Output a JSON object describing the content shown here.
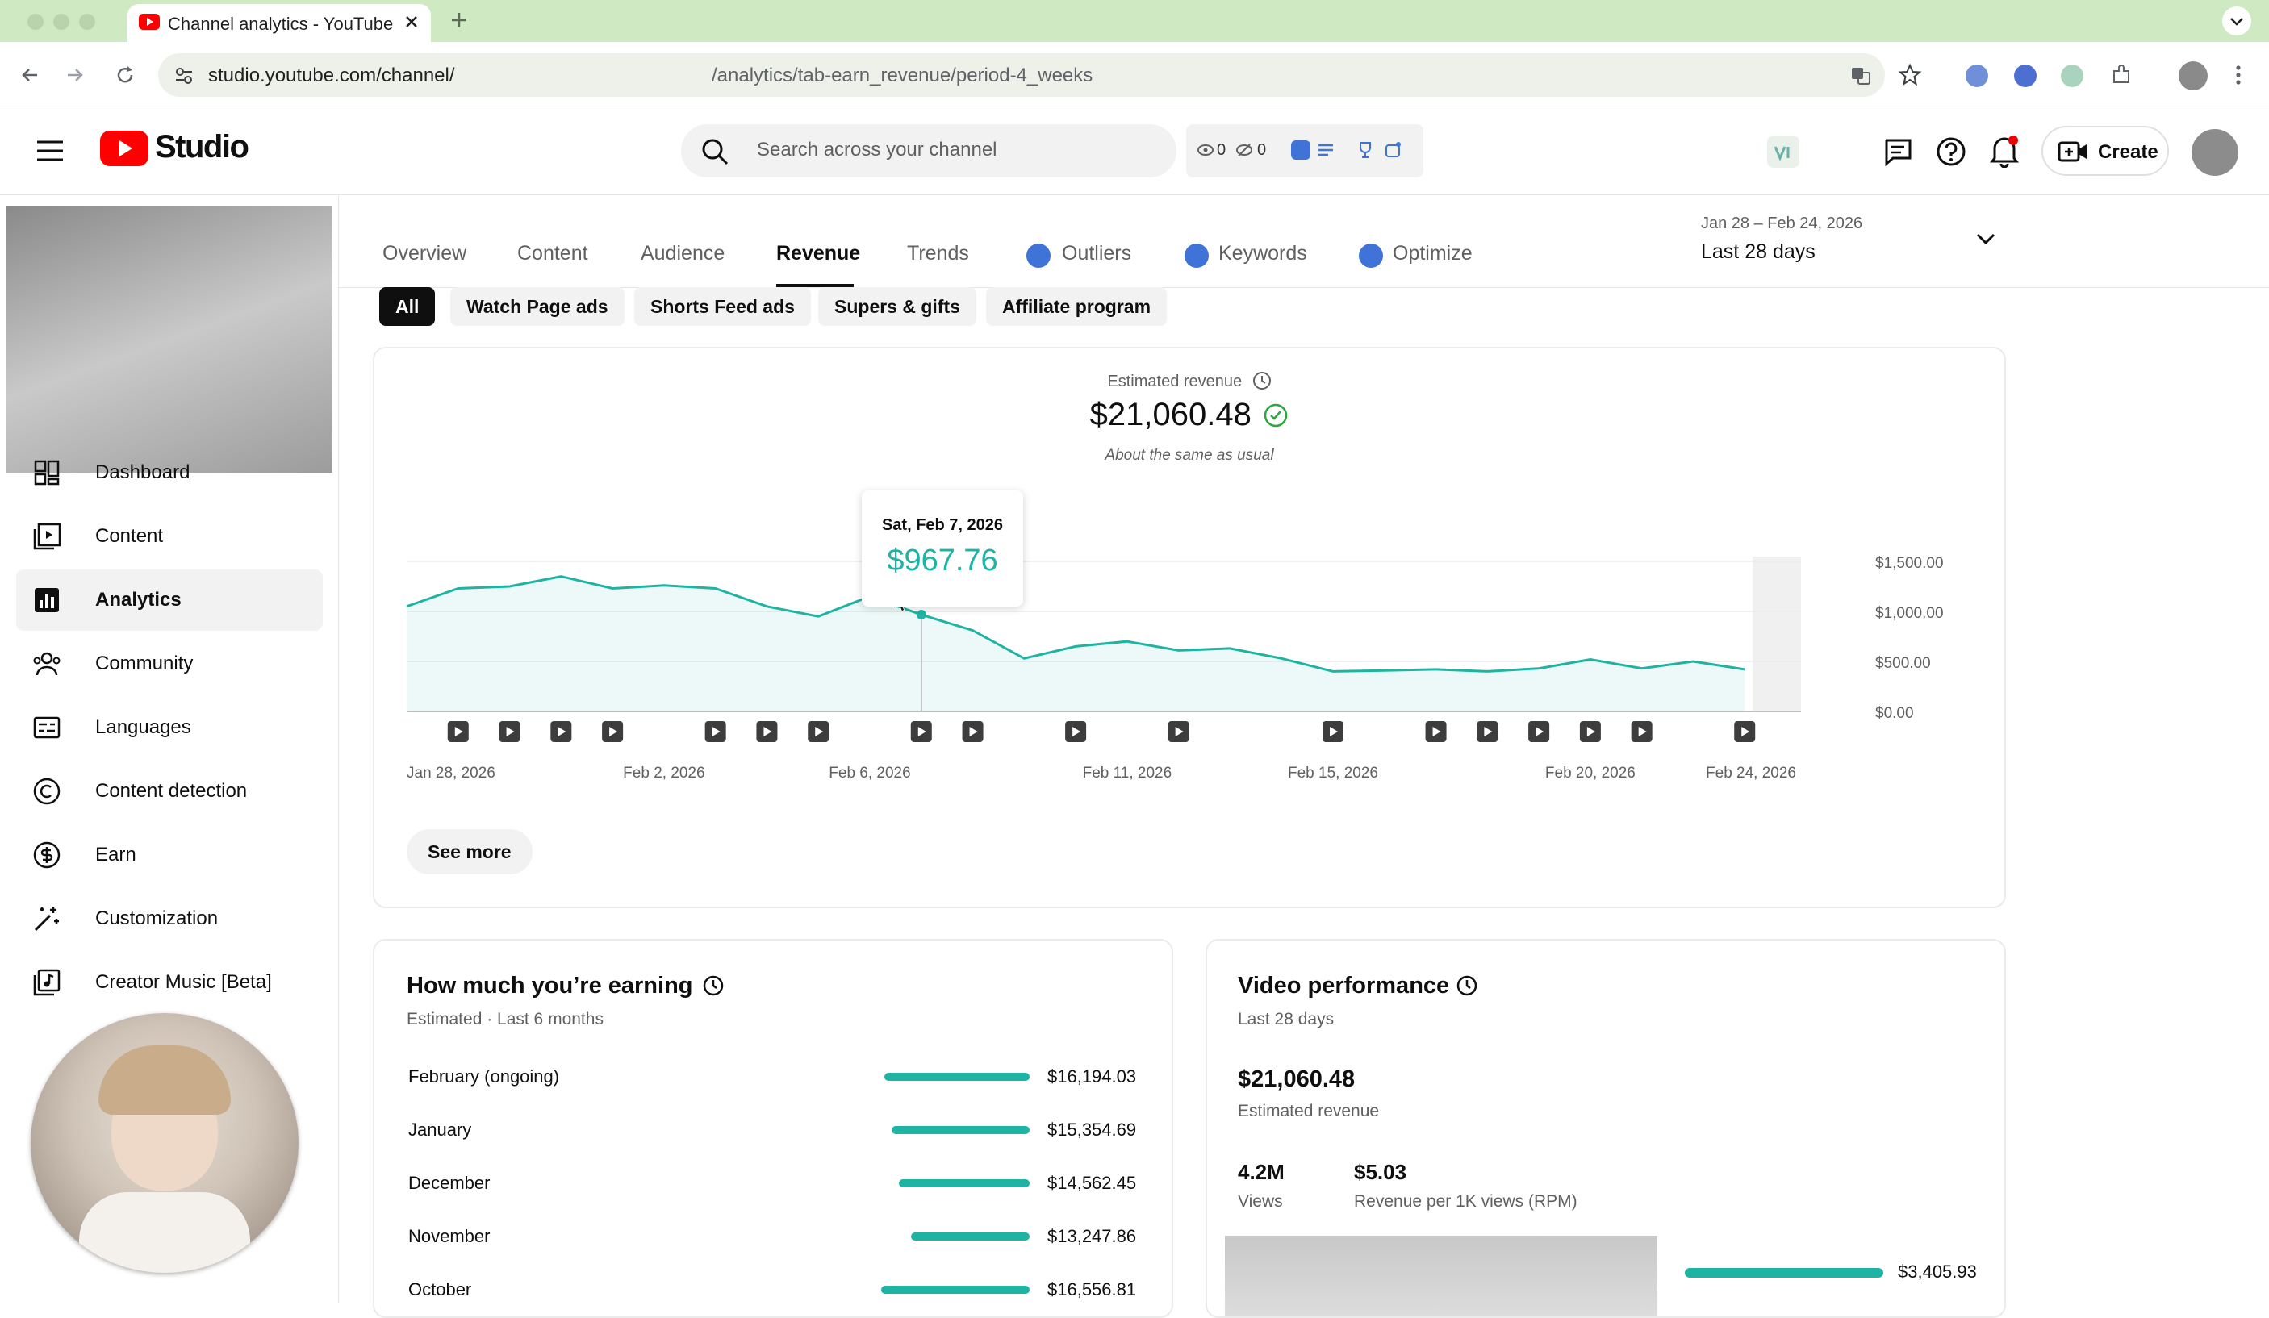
{
  "browser": {
    "tab_title": "Channel analytics - YouTube Studio",
    "url_prefix": "studio.youtube.com/channel/",
    "url_suffix": "/analytics/tab-earn_revenue/period-4_weeks"
  },
  "header": {
    "logo_text": "Studio",
    "search_placeholder": "Search across your channel",
    "ext_counter_1": "0",
    "ext_counter_2": "0",
    "create_label": "Create"
  },
  "sidebar": {
    "items": [
      {
        "label": "Dashboard",
        "icon": "dashboard-icon"
      },
      {
        "label": "Content",
        "icon": "content-icon"
      },
      {
        "label": "Analytics",
        "icon": "analytics-icon",
        "active": true
      },
      {
        "label": "Community",
        "icon": "community-icon"
      },
      {
        "label": "Languages",
        "icon": "languages-icon"
      },
      {
        "label": "Content detection",
        "icon": "copyright-icon"
      },
      {
        "label": "Earn",
        "icon": "dollar-icon"
      },
      {
        "label": "Customization",
        "icon": "magic-wand-icon"
      },
      {
        "label": "Creator Music [Beta]",
        "icon": "music-icon"
      }
    ]
  },
  "tabs": [
    {
      "label": "Overview"
    },
    {
      "label": "Content"
    },
    {
      "label": "Audience"
    },
    {
      "label": "Revenue",
      "active": true
    },
    {
      "label": "Trends"
    },
    {
      "label": "Outliers"
    },
    {
      "label": "Keywords"
    },
    {
      "label": "Optimize"
    }
  ],
  "date_range": {
    "range": "Jan 28 – Feb 24, 2026",
    "label": "Last 28 days"
  },
  "chips": [
    "All",
    "Watch Page ads",
    "Shorts Feed ads",
    "Supers & gifts",
    "Affiliate program"
  ],
  "revenue_card": {
    "metric_label": "Estimated revenue",
    "value": "$21,060.48",
    "note": "About the same as usual",
    "tooltip_date": "Sat, Feb 7, 2026",
    "tooltip_value": "$967.76",
    "see_more": "See more"
  },
  "chart_data": {
    "type": "area",
    "title": "",
    "xlabel": "",
    "ylabel": "",
    "x_tick_labels": [
      "Jan 28, 2026",
      "Feb 2, 2026",
      "Feb 6, 2026",
      "Feb 11, 2026",
      "Feb 15, 2026",
      "Feb 20, 2026",
      "Feb 24, 2026"
    ],
    "y_tick_labels": [
      "$1,500.00",
      "$1,000.00",
      "$500.00",
      "$0.00"
    ],
    "ylim": [
      0,
      1500
    ],
    "x": [
      "Jan 28",
      "Jan 29",
      "Jan 30",
      "Jan 31",
      "Feb 1",
      "Feb 2",
      "Feb 3",
      "Feb 4",
      "Feb 5",
      "Feb 6",
      "Feb 7",
      "Feb 8",
      "Feb 9",
      "Feb 10",
      "Feb 11",
      "Feb 12",
      "Feb 13",
      "Feb 14",
      "Feb 15",
      "Feb 16",
      "Feb 17",
      "Feb 18",
      "Feb 19",
      "Feb 20",
      "Feb 21",
      "Feb 22",
      "Feb 23",
      "Feb 24"
    ],
    "series": [
      {
        "values": [
          1050,
          1230,
          1250,
          1350,
          1230,
          1260,
          1230,
          1050,
          950,
          1150,
          967.76,
          810,
          530,
          650,
          700,
          610,
          630,
          530,
          400,
          410,
          420,
          400,
          430,
          520,
          430,
          500,
          420,
          null
        ]
      }
    ],
    "grid": true,
    "video_markers_on": [
      "Jan 29",
      "Jan 30",
      "Jan 31",
      "Feb 1",
      "Feb 3",
      "Feb 4",
      "Feb 5",
      "Feb 7",
      "Feb 8",
      "Feb 10",
      "Feb 12",
      "Feb 15",
      "Feb 17",
      "Feb 18",
      "Feb 19",
      "Feb 20",
      "Feb 21",
      "Feb 23"
    ],
    "accent_color": "#1fb3a3"
  },
  "earning_card": {
    "title": "How much you’re earning",
    "subtitle": "Estimated · Last 6 months",
    "rows": [
      {
        "label": "February (ongoing)",
        "value": "$16,194.03",
        "amount": 16194.03
      },
      {
        "label": "January",
        "value": "$15,354.69",
        "amount": 15354.69
      },
      {
        "label": "December",
        "value": "$14,562.45",
        "amount": 14562.45
      },
      {
        "label": "November",
        "value": "$13,247.86",
        "amount": 13247.86
      },
      {
        "label": "October",
        "value": "$16,556.81",
        "amount": 16556.81
      }
    ]
  },
  "video_card": {
    "title": "Video performance",
    "subtitle": "Last 28 days",
    "revenue_value": "$21,060.48",
    "revenue_label": "Estimated revenue",
    "views_value": "4.2M",
    "views_label": "Views",
    "rpm_value": "$5.03",
    "rpm_label": "Revenue per 1K views (RPM)",
    "top_video_value": "$3,405.93"
  },
  "colors": {
    "accent": "#1fb3a3",
    "youtube_red": "#ff0000",
    "tab_strip": "#cfe9c3"
  }
}
